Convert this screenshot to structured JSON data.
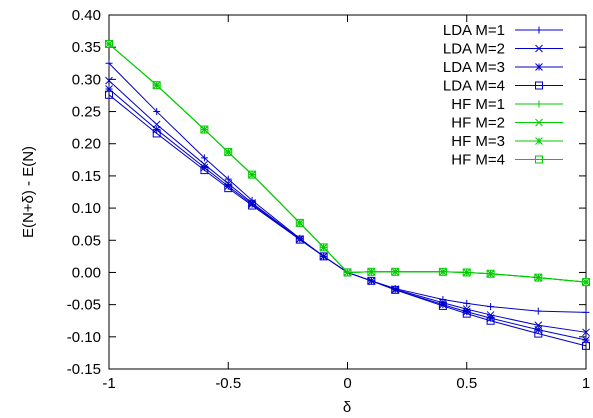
{
  "chart_data": {
    "type": "line",
    "title": "",
    "xlabel": "δ",
    "ylabel": "E(N+δ) - E(N)",
    "xlim": [
      -1,
      1
    ],
    "ylim": [
      -0.15,
      0.4
    ],
    "xticks": [
      -1,
      -0.5,
      0,
      0.5,
      1
    ],
    "xtick_labels": [
      "-1",
      "-0.5",
      "0",
      "0.5",
      "1"
    ],
    "yticks": [
      -0.15,
      -0.1,
      -0.05,
      0.0,
      0.05,
      0.1,
      0.15,
      0.2,
      0.25,
      0.3,
      0.35,
      0.4
    ],
    "ytick_labels": [
      "-0.15",
      "-0.10",
      "-0.05",
      "0.00",
      "0.05",
      "0.10",
      "0.15",
      "0.20",
      "0.25",
      "0.30",
      "0.35",
      "0.40"
    ],
    "grid": false,
    "legend_position": "top-right",
    "x": [
      -1,
      -0.8,
      -0.6,
      -0.5,
      -0.4,
      -0.2,
      -0.1,
      0,
      0.1,
      0.2,
      0.4,
      0.5,
      0.6,
      0.8,
      1
    ],
    "series": [
      {
        "name": "LDA M=1",
        "color": "#0000cc",
        "marker": "plus",
        "values": [
          0.325,
          0.25,
          0.178,
          0.145,
          0.112,
          0.053,
          0.025,
          0.0,
          -0.013,
          -0.025,
          -0.042,
          -0.048,
          -0.053,
          -0.06,
          -0.062
        ]
      },
      {
        "name": "LDA M=2",
        "color": "#0000cc",
        "marker": "cross",
        "values": [
          0.298,
          0.23,
          0.168,
          0.138,
          0.108,
          0.052,
          0.025,
          0.0,
          -0.013,
          -0.026,
          -0.047,
          -0.057,
          -0.066,
          -0.082,
          -0.093
        ]
      },
      {
        "name": "LDA M=3",
        "color": "#0000cc",
        "marker": "star",
        "values": [
          0.285,
          0.222,
          0.163,
          0.134,
          0.106,
          0.052,
          0.025,
          0.0,
          -0.013,
          -0.027,
          -0.05,
          -0.061,
          -0.071,
          -0.089,
          -0.105
        ]
      },
      {
        "name": "LDA M=4",
        "color": "#0000cc",
        "marker": "square",
        "values": [
          0.276,
          0.216,
          0.159,
          0.131,
          0.104,
          0.051,
          0.025,
          0.0,
          -0.013,
          -0.027,
          -0.052,
          -0.064,
          -0.075,
          -0.095,
          -0.114
        ]
      },
      {
        "name": "HF M=1",
        "color": "#00cc00",
        "marker": "plus",
        "values": [
          0.355,
          0.291,
          0.222,
          0.187,
          0.152,
          0.077,
          0.039,
          0.0,
          0.001,
          0.001,
          0.001,
          0.0,
          -0.002,
          -0.008,
          -0.015
        ]
      },
      {
        "name": "HF M=2",
        "color": "#00cc00",
        "marker": "cross",
        "values": [
          0.355,
          0.291,
          0.222,
          0.187,
          0.152,
          0.077,
          0.039,
          0.0,
          0.001,
          0.001,
          0.001,
          0.0,
          -0.002,
          -0.008,
          -0.015
        ]
      },
      {
        "name": "HF M=3",
        "color": "#00cc00",
        "marker": "star",
        "values": [
          0.355,
          0.291,
          0.222,
          0.187,
          0.152,
          0.077,
          0.039,
          0.0,
          0.001,
          0.001,
          0.001,
          0.0,
          -0.002,
          -0.008,
          -0.015
        ]
      },
      {
        "name": "HF M=4",
        "color": "#00cc00",
        "marker": "square",
        "values": [
          0.355,
          0.291,
          0.222,
          0.187,
          0.152,
          0.077,
          0.039,
          0.0,
          0.001,
          0.001,
          0.001,
          0.0,
          -0.002,
          -0.008,
          -0.015
        ]
      }
    ]
  }
}
